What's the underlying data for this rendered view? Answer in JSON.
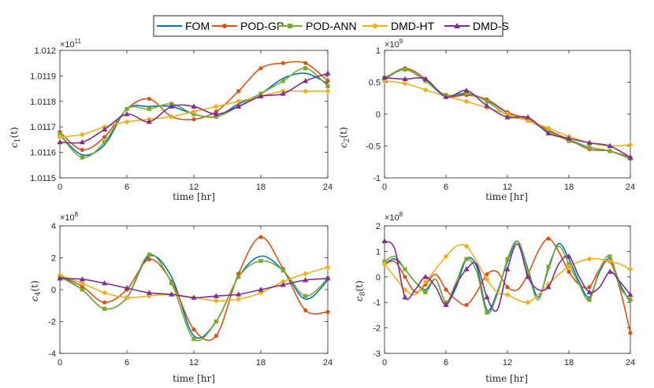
{
  "legend": [
    {
      "name": "FOM",
      "color": "#0072BD",
      "marker": "none"
    },
    {
      "name": "POD-GP",
      "color": "#D95319",
      "marker": "circle"
    },
    {
      "name": "POD-ANN",
      "color": "#77AC30",
      "marker": "square"
    },
    {
      "name": "DMD-HT",
      "color": "#EDB120",
      "marker": "diamond"
    },
    {
      "name": "DMD-S",
      "color": "#7E2F8E",
      "marker": "triangle"
    }
  ],
  "chart_data": [
    {
      "type": "line",
      "ylabel_base": "c",
      "ylabel_sub": "1",
      "ylabel_arg": "(t)",
      "xlabel": "time [hr]",
      "exponent_base": "×10",
      "exponent_power": "11",
      "xlim": [
        0,
        24
      ],
      "ylim": [
        1.0115,
        1.012
      ],
      "x_ticks": [
        0,
        6,
        12,
        18,
        24
      ],
      "y_ticks": [
        1.0115,
        1.0116,
        1.0117,
        1.0118,
        1.0119,
        1.012
      ],
      "y_tick_labels": [
        "1.0115",
        "1.0116",
        "1.0117",
        "1.0118",
        "1.0119",
        "1.012"
      ],
      "series": [
        {
          "name": "FOM",
          "x": [
            0,
            2,
            4,
            6,
            8,
            10,
            12,
            14,
            16,
            18,
            20,
            22,
            24
          ],
          "y": [
            1.01167,
            1.01159,
            1.01163,
            1.01177,
            1.01178,
            1.01178,
            1.01175,
            1.01174,
            1.01179,
            1.01183,
            1.01189,
            1.01191,
            1.01187
          ]
        },
        {
          "name": "POD-GP",
          "x": [
            0,
            2,
            4,
            6,
            8,
            10,
            12,
            14,
            16,
            18,
            20,
            22,
            24
          ],
          "y": [
            1.01168,
            1.01161,
            1.01166,
            1.01177,
            1.01181,
            1.01174,
            1.01173,
            1.01176,
            1.01184,
            1.01193,
            1.01195,
            1.01195,
            1.01188
          ]
        },
        {
          "name": "POD-ANN",
          "x": [
            0,
            2,
            4,
            6,
            8,
            10,
            12,
            14,
            16,
            18,
            20,
            22,
            24
          ],
          "y": [
            1.01167,
            1.01158,
            1.01164,
            1.01177,
            1.01177,
            1.01179,
            1.01175,
            1.01174,
            1.01178,
            1.01183,
            1.01188,
            1.01193,
            1.01186
          ]
        },
        {
          "name": "DMD-HT",
          "x": [
            0,
            2,
            4,
            6,
            8,
            10,
            12,
            14,
            16,
            18,
            20,
            22,
            24
          ],
          "y": [
            1.01166,
            1.01167,
            1.0117,
            1.01172,
            1.01173,
            1.01174,
            1.01176,
            1.01178,
            1.0118,
            1.01182,
            1.01184,
            1.01184,
            1.01184
          ]
        },
        {
          "name": "DMD-S",
          "x": [
            0,
            2,
            4,
            6,
            8,
            10,
            12,
            14,
            16,
            18,
            20,
            22,
            24
          ],
          "y": [
            1.01164,
            1.01164,
            1.01169,
            1.01175,
            1.01172,
            1.01178,
            1.01178,
            1.01175,
            1.01178,
            1.01182,
            1.01183,
            1.01188,
            1.01191
          ]
        }
      ]
    },
    {
      "type": "line",
      "ylabel_base": "c",
      "ylabel_sub": "2",
      "ylabel_arg": "(t)",
      "xlabel": "time [hr]",
      "exponent_base": "×10",
      "exponent_power": "9",
      "xlim": [
        0,
        24
      ],
      "ylim": [
        -1,
        1
      ],
      "x_ticks": [
        0,
        6,
        12,
        18,
        24
      ],
      "y_ticks": [
        -1,
        -0.5,
        0,
        0.5,
        1
      ],
      "y_tick_labels": [
        "-1",
        "-0.5",
        "0",
        "0.5",
        "1"
      ],
      "series": [
        {
          "name": "FOM",
          "x": [
            0,
            2,
            4,
            6,
            8,
            10,
            12,
            14,
            16,
            18,
            20,
            22,
            24
          ],
          "y": [
            0.55,
            0.7,
            0.52,
            0.28,
            0.32,
            0.22,
            0.02,
            -0.1,
            -0.25,
            -0.4,
            -0.52,
            -0.58,
            -0.7
          ]
        },
        {
          "name": "POD-GP",
          "x": [
            0,
            2,
            4,
            6,
            8,
            10,
            12,
            14,
            16,
            18,
            20,
            22,
            24
          ],
          "y": [
            0.55,
            0.72,
            0.55,
            0.28,
            0.3,
            0.23,
            0.03,
            -0.08,
            -0.25,
            -0.4,
            -0.55,
            -0.58,
            -0.68
          ]
        },
        {
          "name": "POD-ANN",
          "x": [
            0,
            2,
            4,
            6,
            8,
            10,
            12,
            14,
            16,
            18,
            20,
            22,
            24
          ],
          "y": [
            0.57,
            0.7,
            0.52,
            0.3,
            0.33,
            0.2,
            -0.02,
            -0.1,
            -0.27,
            -0.42,
            -0.52,
            -0.58,
            -0.7
          ]
        },
        {
          "name": "DMD-HT",
          "x": [
            0,
            2,
            4,
            6,
            8,
            10,
            12,
            14,
            16,
            18,
            20,
            22,
            24
          ],
          "y": [
            0.52,
            0.48,
            0.38,
            0.28,
            0.2,
            0.1,
            0.0,
            -0.1,
            -0.22,
            -0.35,
            -0.45,
            -0.5,
            -0.48
          ]
        },
        {
          "name": "DMD-S",
          "x": [
            0,
            2,
            4,
            6,
            8,
            10,
            12,
            14,
            16,
            18,
            20,
            22,
            24
          ],
          "y": [
            0.57,
            0.55,
            0.55,
            0.27,
            0.37,
            0.13,
            -0.05,
            -0.05,
            -0.3,
            -0.38,
            -0.45,
            -0.5,
            -0.68
          ]
        }
      ]
    },
    {
      "type": "line",
      "ylabel_base": "c",
      "ylabel_sub": "4",
      "ylabel_arg": "(t)",
      "xlabel": "time [hr]",
      "exponent_base": "×10",
      "exponent_power": "8",
      "xlim": [
        0,
        24
      ],
      "ylim": [
        -4,
        4
      ],
      "x_ticks": [
        0,
        6,
        12,
        18,
        24
      ],
      "y_ticks": [
        -4,
        -2,
        0,
        2,
        4
      ],
      "y_tick_labels": [
        "-4",
        "-2",
        "0",
        "2",
        "4"
      ],
      "series": [
        {
          "name": "FOM",
          "x": [
            0,
            2,
            4,
            6,
            8,
            10,
            12,
            14,
            16,
            18,
            20,
            22,
            24
          ],
          "y": [
            0.9,
            0.0,
            -1.2,
            -0.5,
            2.1,
            0.8,
            -2.9,
            -2.0,
            0.8,
            2.1,
            1.2,
            -0.6,
            0.6
          ]
        },
        {
          "name": "POD-GP",
          "x": [
            0,
            2,
            4,
            6,
            8,
            10,
            12,
            14,
            16,
            18,
            20,
            22,
            24
          ],
          "y": [
            0.9,
            0.2,
            -0.8,
            0.0,
            1.9,
            0.5,
            -2.5,
            -2.9,
            1.0,
            3.3,
            1.3,
            -1.3,
            -1.4
          ]
        },
        {
          "name": "POD-ANN",
          "x": [
            0,
            2,
            4,
            6,
            8,
            10,
            12,
            14,
            16,
            18,
            20,
            22,
            24
          ],
          "y": [
            0.8,
            0.0,
            -1.2,
            -0.5,
            2.2,
            0.4,
            -3.1,
            -2.0,
            0.8,
            1.8,
            1.2,
            -0.4,
            0.7
          ]
        },
        {
          "name": "DMD-HT",
          "x": [
            0,
            2,
            4,
            6,
            8,
            10,
            12,
            14,
            16,
            18,
            20,
            22,
            24
          ],
          "y": [
            0.9,
            0.4,
            -0.2,
            -0.5,
            -0.4,
            -0.3,
            -0.5,
            -0.7,
            -0.6,
            -0.2,
            0.5,
            1.0,
            1.4
          ]
        },
        {
          "name": "DMD-S",
          "x": [
            0,
            2,
            4,
            6,
            8,
            10,
            12,
            14,
            16,
            18,
            20,
            22,
            24
          ],
          "y": [
            0.7,
            0.65,
            0.4,
            0.1,
            -0.2,
            -0.3,
            -0.5,
            -0.4,
            -0.3,
            0.0,
            0.3,
            0.6,
            0.7
          ]
        }
      ]
    },
    {
      "type": "line",
      "ylabel_base": "c",
      "ylabel_sub": "8",
      "ylabel_arg": "(t)",
      "xlabel": "time [hr]",
      "exponent_base": "×10",
      "exponent_power": "8",
      "xlim": [
        0,
        24
      ],
      "ylim": [
        -3,
        2
      ],
      "x_ticks": [
        0,
        6,
        12,
        18,
        24
      ],
      "y_ticks": [
        -3,
        -2,
        -1,
        0,
        1,
        2
      ],
      "y_tick_labels": [
        "-3",
        "-2",
        "-1",
        "0",
        "1",
        "2"
      ],
      "series": [
        {
          "name": "FOM",
          "x": [
            0,
            1,
            2,
            3,
            4,
            5,
            6,
            7,
            8,
            9,
            10,
            11,
            12,
            13,
            14,
            15,
            16,
            17,
            18,
            19,
            20,
            21,
            22,
            23,
            24
          ],
          "y": [
            0.5,
            0.7,
            0.3,
            -0.2,
            -0.5,
            -0.1,
            -1.0,
            -0.4,
            0.7,
            0.4,
            -1.3,
            -0.6,
            0.6,
            1.4,
            0.3,
            -0.8,
            0.3,
            1.3,
            0.7,
            -0.2,
            -0.8,
            0.2,
            0.7,
            -0.3,
            -1.0
          ]
        },
        {
          "name": "POD-GP",
          "x": [
            0,
            1,
            2,
            3,
            4,
            5,
            6,
            7,
            8,
            9,
            10,
            11,
            12,
            13,
            14,
            15,
            16,
            17,
            18,
            19,
            20,
            21,
            22,
            23,
            24
          ],
          "y": [
            0.5,
            0.6,
            0.0,
            -0.6,
            -0.3,
            0.1,
            -0.5,
            -0.9,
            -1.1,
            -0.6,
            0.1,
            0.2,
            -0.4,
            -0.5,
            0.1,
            1.0,
            1.5,
            1.0,
            0.2,
            -0.3,
            -0.4,
            0.3,
            0.6,
            -0.5,
            -2.2
          ]
        },
        {
          "name": "POD-ANN",
          "x": [
            0,
            1,
            2,
            3,
            4,
            5,
            6,
            7,
            8,
            9,
            10,
            11,
            12,
            13,
            14,
            15,
            16,
            17,
            18,
            19,
            20,
            21,
            22,
            23,
            24
          ],
          "y": [
            0.6,
            0.8,
            0.3,
            -0.2,
            -0.6,
            -0.1,
            -1.0,
            -0.2,
            0.7,
            0.2,
            -1.4,
            -0.7,
            0.7,
            1.4,
            0.2,
            -0.9,
            0.4,
            1.2,
            0.5,
            -0.3,
            -0.9,
            0.3,
            0.8,
            -0.4,
            -0.9
          ]
        },
        {
          "name": "DMD-HT",
          "x": [
            0,
            1,
            2,
            3,
            4,
            5,
            6,
            7,
            8,
            9,
            10,
            11,
            12,
            13,
            14,
            15,
            16,
            17,
            18,
            19,
            20,
            21,
            22,
            23,
            24
          ],
          "y": [
            0.5,
            0.0,
            -0.5,
            -0.7,
            -0.2,
            0.3,
            0.8,
            1.2,
            1.2,
            0.6,
            -0.1,
            -0.6,
            -0.7,
            -0.9,
            -1.0,
            -0.7,
            -0.3,
            0.1,
            0.4,
            0.6,
            0.7,
            0.7,
            0.6,
            0.5,
            0.3
          ]
        },
        {
          "name": "DMD-S",
          "x": [
            0,
            1,
            2,
            3,
            4,
            5,
            6,
            7,
            8,
            9,
            10,
            11,
            12,
            13,
            14,
            15,
            16,
            17,
            18,
            19,
            20,
            21,
            22,
            23,
            24
          ],
          "y": [
            1.4,
            1.1,
            -0.8,
            -0.5,
            0.0,
            -0.4,
            -1.1,
            -0.3,
            0.3,
            0.5,
            -0.8,
            -1.3,
            0.3,
            1.3,
            0.0,
            -0.5,
            -0.4,
            0.5,
            0.8,
            0.0,
            -0.6,
            -0.4,
            0.2,
            -0.2,
            -0.7
          ]
        }
      ]
    }
  ]
}
